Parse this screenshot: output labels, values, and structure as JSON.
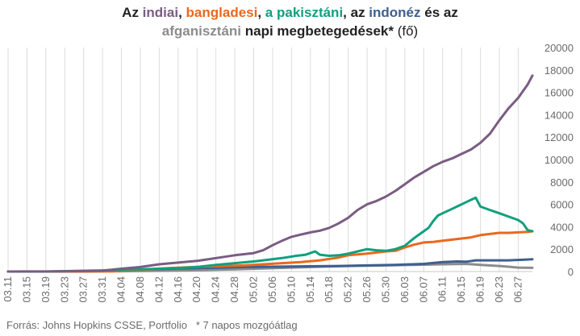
{
  "chart_data": {
    "type": "line",
    "title_segments": [
      {
        "text": "Az ",
        "color": "#222222"
      },
      {
        "text": "indiai",
        "color": "#7a5c82"
      },
      {
        "text": ", ",
        "color": "#222222"
      },
      {
        "text": "bangladesi",
        "color": "#e8691d"
      },
      {
        "text": ", ",
        "color": "#222222"
      },
      {
        "text": "a pakisztáni",
        "color": "#10a07e"
      },
      {
        "text": ", az ",
        "color": "#222222"
      },
      {
        "text": "indonéz",
        "color": "#3f5f8f"
      },
      {
        "text": " és az",
        "color": "#222222"
      },
      {
        "text": "afganisztáni",
        "color": "#8c8c8c",
        "newline": true
      },
      {
        "text": " napi megbetegedések*",
        "color": "#222222"
      },
      {
        "text": " (fő)",
        "color": "#222222",
        "normal": true
      }
    ],
    "source": "Forrás: Johns Hopkins CSSE, Portfolio   * 7 napos mozgóátlag",
    "x_tick_labels": [
      "03.11",
      "03.15",
      "03.19",
      "03.23",
      "03.27",
      "03.31",
      "04.04",
      "04.08",
      "04.12",
      "04.16",
      "04.20",
      "04.24",
      "04.28",
      "05.02",
      "05.06",
      "05.10",
      "05.14",
      "05.18",
      "05.22",
      "05.26",
      "05.30",
      "06.03",
      "06.07",
      "06.11",
      "06.15",
      "06.19",
      "06.23",
      "06.27"
    ],
    "x_ticks_day_index": [
      0,
      4,
      8,
      12,
      16,
      20,
      24,
      28,
      32,
      36,
      40,
      44,
      48,
      52,
      56,
      60,
      64,
      68,
      72,
      76,
      80,
      84,
      88,
      92,
      96,
      100,
      104,
      108
    ],
    "y_ticks": [
      0,
      2000,
      4000,
      6000,
      8000,
      10000,
      12000,
      14000,
      16000,
      18000,
      20000
    ],
    "ylim": [
      0,
      20000
    ],
    "y_axis_position": "right",
    "grid": "vertical",
    "series": [
      {
        "color": "#8c8c8c",
        "points": [
          [
            0,
            0
          ],
          [
            8,
            0
          ],
          [
            16,
            10
          ],
          [
            24,
            30
          ],
          [
            36,
            80
          ],
          [
            48,
            200
          ],
          [
            60,
            350
          ],
          [
            72,
            500
          ],
          [
            80,
            550
          ],
          [
            86,
            600
          ],
          [
            92,
            650
          ],
          [
            97,
            680
          ],
          [
            100,
            600
          ],
          [
            104,
            500
          ],
          [
            108,
            350
          ],
          [
            111,
            330
          ]
        ]
      },
      {
        "color": "#3f5f8f",
        "points": [
          [
            0,
            0
          ],
          [
            10,
            0
          ],
          [
            20,
            60
          ],
          [
            30,
            200
          ],
          [
            40,
            300
          ],
          [
            50,
            400
          ],
          [
            60,
            450
          ],
          [
            70,
            500
          ],
          [
            76,
            550
          ],
          [
            82,
            600
          ],
          [
            88,
            680
          ],
          [
            92,
            850
          ],
          [
            95,
            900
          ],
          [
            97,
            880
          ],
          [
            99,
            1000
          ],
          [
            103,
            1000
          ],
          [
            106,
            1000
          ],
          [
            109,
            1050
          ],
          [
            111,
            1100
          ]
        ]
      },
      {
        "color": "#e8691d",
        "points": [
          [
            0,
            0
          ],
          [
            16,
            0
          ],
          [
            22,
            20
          ],
          [
            26,
            100
          ],
          [
            30,
            200
          ],
          [
            34,
            300
          ],
          [
            38,
            380
          ],
          [
            42,
            450
          ],
          [
            46,
            500
          ],
          [
            50,
            550
          ],
          [
            54,
            650
          ],
          [
            58,
            750
          ],
          [
            62,
            850
          ],
          [
            66,
            1000
          ],
          [
            70,
            1250
          ],
          [
            72,
            1450
          ],
          [
            76,
            1600
          ],
          [
            80,
            1800
          ],
          [
            82,
            1850
          ],
          [
            84,
            2150
          ],
          [
            86,
            2400
          ],
          [
            88,
            2600
          ],
          [
            90,
            2650
          ],
          [
            92,
            2750
          ],
          [
            94,
            2850
          ],
          [
            96,
            2950
          ],
          [
            98,
            3050
          ],
          [
            100,
            3250
          ],
          [
            102,
            3350
          ],
          [
            104,
            3450
          ],
          [
            106,
            3450
          ],
          [
            108,
            3500
          ],
          [
            110,
            3550
          ],
          [
            111,
            3600
          ]
        ]
      },
      {
        "color": "#10a07e",
        "points": [
          [
            0,
            0
          ],
          [
            8,
            0
          ],
          [
            14,
            50
          ],
          [
            20,
            100
          ],
          [
            24,
            150
          ],
          [
            28,
            200
          ],
          [
            32,
            250
          ],
          [
            36,
            300
          ],
          [
            40,
            400
          ],
          [
            44,
            600
          ],
          [
            48,
            750
          ],
          [
            52,
            900
          ],
          [
            55,
            1050
          ],
          [
            58,
            1200
          ],
          [
            61,
            1400
          ],
          [
            63,
            1500
          ],
          [
            65,
            1800
          ],
          [
            66,
            1500
          ],
          [
            68,
            1400
          ],
          [
            70,
            1450
          ],
          [
            72,
            1600
          ],
          [
            74,
            1800
          ],
          [
            76,
            2000
          ],
          [
            78,
            1900
          ],
          [
            80,
            1850
          ],
          [
            82,
            2000
          ],
          [
            84,
            2300
          ],
          [
            86,
            3000
          ],
          [
            88,
            3600
          ],
          [
            89,
            3900
          ],
          [
            90,
            4500
          ],
          [
            91,
            5000
          ],
          [
            92,
            5200
          ],
          [
            94,
            5600
          ],
          [
            96,
            6000
          ],
          [
            97,
            6200
          ],
          [
            98,
            6400
          ],
          [
            99,
            6600
          ],
          [
            100,
            5800
          ],
          [
            102,
            5500
          ],
          [
            104,
            5200
          ],
          [
            106,
            4900
          ],
          [
            108,
            4600
          ],
          [
            109,
            4300
          ],
          [
            110,
            3700
          ],
          [
            111,
            3600
          ]
        ]
      },
      {
        "color": "#7a5c82",
        "points": [
          [
            0,
            0
          ],
          [
            4,
            5
          ],
          [
            8,
            10
          ],
          [
            12,
            20
          ],
          [
            16,
            40
          ],
          [
            20,
            80
          ],
          [
            24,
            250
          ],
          [
            28,
            400
          ],
          [
            32,
            650
          ],
          [
            36,
            800
          ],
          [
            40,
            950
          ],
          [
            44,
            1200
          ],
          [
            48,
            1450
          ],
          [
            52,
            1650
          ],
          [
            54,
            1900
          ],
          [
            56,
            2350
          ],
          [
            58,
            2750
          ],
          [
            60,
            3100
          ],
          [
            62,
            3300
          ],
          [
            64,
            3500
          ],
          [
            66,
            3650
          ],
          [
            68,
            3900
          ],
          [
            70,
            4300
          ],
          [
            72,
            4800
          ],
          [
            74,
            5500
          ],
          [
            76,
            6000
          ],
          [
            78,
            6300
          ],
          [
            80,
            6700
          ],
          [
            82,
            7200
          ],
          [
            84,
            7800
          ],
          [
            86,
            8400
          ],
          [
            88,
            8900
          ],
          [
            90,
            9400
          ],
          [
            92,
            9800
          ],
          [
            94,
            10100
          ],
          [
            96,
            10500
          ],
          [
            98,
            10900
          ],
          [
            100,
            11500
          ],
          [
            102,
            12300
          ],
          [
            104,
            13500
          ],
          [
            106,
            14600
          ],
          [
            108,
            15500
          ],
          [
            110,
            16700
          ],
          [
            111,
            17500
          ]
        ]
      }
    ]
  }
}
